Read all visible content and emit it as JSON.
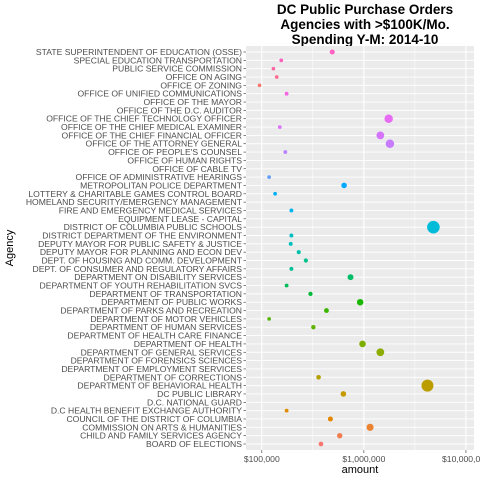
{
  "chart_data": {
    "type": "scatter",
    "title_lines": [
      "DC Public Purchase Orders",
      "Agencies with >$100K/Mo.",
      "Spending Y-M: 2014-10"
    ],
    "xlabel": "amount",
    "ylabel": "Agency",
    "x_scale": "log10",
    "xlim": [
      70000,
      12000000
    ],
    "x_ticks": [
      100000,
      1000000,
      10000000
    ],
    "x_tick_labels": [
      "$100,000",
      "$1,000,000",
      "$10,000,000"
    ],
    "grid": true,
    "legend": "none",
    "point_color_scheme": "hue by agency",
    "agencies": [
      "STATE SUPERINTENDENT OF EDUCATION (OSSE)",
      "SPECIAL EDUCATION TRANSPORTATION",
      "PUBLIC SERVICE COMMISSION",
      "OFFICE ON AGING",
      "OFFICE OF ZONING",
      "OFFICE OF UNIFIED COMMUNICATIONS",
      "OFFICE OF THE MAYOR",
      "OFFICE OF THE D.C. AUDITOR",
      "OFFICE OF THE CHIEF TECHNOLOGY OFFICER",
      "OFFICE OF THE CHIEF MEDICAL EXAMINER",
      "OFFICE OF THE CHIEF FINANCIAL OFFICER",
      "OFFICE OF THE ATTORNEY GENERAL",
      "OFFICE OF PEOPLE'S COUNSEL",
      "OFFICE OF HUMAN RIGHTS",
      "OFFICE OF CABLE TV",
      "OFFICE OF ADMINISTRATIVE HEARINGS",
      "METROPOLITAN POLICE DEPARTMENT",
      "LOTTERY & CHARITABLE GAMES CONTROL BOARD",
      "HOMELAND SECURITY/EMERGENCY MANAGEMENT",
      "FIRE AND EMERGENCY MEDICAL SERVICES",
      "EQUIPMENT LEASE - CAPITAL",
      "DISTRICT OF COLUMBIA PUBLIC SCHOOLS",
      "DISTRICT DEPARTMENT OF THE ENVIRONMENT",
      "DEPUTY MAYOR FOR PUBLIC SAFETY & JUSTICE",
      "DEPUTY MAYOR FOR PLANNING AND ECON DEV",
      "DEPT. OF HOUSING AND COMM. DEVELOPMENT",
      "DEPT. OF CONSUMER AND REGULATORY AFFAIRS",
      "DEPARTMENT ON DISABILITY SERVICES",
      "DEPARTMENT OF YOUTH REHABILITATION SVCS",
      "DEPARTMENT OF TRANSPORTATION",
      "DEPARTMENT OF PUBLIC WORKS",
      "DEPARTMENT OF PARKS AND RECREATION",
      "DEPARTMENT OF MOTOR VEHICLES",
      "DEPARTMENT OF HUMAN SERVICES",
      "DEPARTMENT OF HEALTH CARE FINANCE",
      "DEPARTMENT OF HEALTH",
      "DEPARTMENT OF GENERAL SERVICES",
      "DEPARTMENT OF FORENSICS SCIENCES",
      "DEPARTMENT OF EMPLOYMENT SERVICES",
      "DEPARTMENT OF CORRECTIONS",
      "DEPARTMENT OF BEHAVIORAL HEALTH",
      "DC PUBLIC LIBRARY",
      "D.C. NATIONAL GUARD",
      "D.C HEALTH BENEFIT EXCHANGE AUTHORITY",
      "COUNCIL OF THE DISTRICT OF COLUMBIA",
      "COMMISSION ON ARTS & HUMANITIES",
      "CHILD AND FAMILY SERVICES AGENCY",
      "BOARD OF ELECTIONS"
    ],
    "points": [
      {
        "agency": "STATE SUPERINTENDENT OF EDUCATION (OSSE)",
        "amount": 490000,
        "color": "#FF61C3"
      },
      {
        "agency": "SPECIAL EDUCATION TRANSPORTATION",
        "amount": 155000,
        "color": "#FF62BC"
      },
      {
        "agency": "PUBLIC SERVICE COMMISSION",
        "amount": 130000,
        "color": "#FF67A4"
      },
      {
        "agency": "OFFICE ON AGING",
        "amount": 140000,
        "color": "#FF6C91"
      },
      {
        "agency": "OFFICE OF ZONING",
        "amount": 95000,
        "color": "#F8766D"
      },
      {
        "agency": "OFFICE OF UNIFIED COMMUNICATIONS",
        "amount": 175000,
        "color": "#F564E3"
      },
      {
        "agency": "OFFICE OF THE CHIEF TECHNOLOGY OFFICER",
        "amount": 1750000,
        "color": "#E76BF3"
      },
      {
        "agency": "OFFICE OF THE CHIEF MEDICAL EXAMINER",
        "amount": 150000,
        "color": "#DB72FB"
      },
      {
        "agency": "OFFICE OF THE CHIEF FINANCIAL OFFICER",
        "amount": 1450000,
        "color": "#D575FE"
      },
      {
        "agency": "OFFICE OF THE ATTORNEY GENERAL",
        "amount": 1800000,
        "color": "#C77CFF"
      },
      {
        "agency": "OFFICE OF PEOPLE'S COUNSEL",
        "amount": 170000,
        "color": "#B983FF"
      },
      {
        "agency": "OFFICE OF ADMINISTRATIVE HEARINGS",
        "amount": 118000,
        "color": "#619CFF"
      },
      {
        "agency": "METROPOLITAN POLICE DEPARTMENT",
        "amount": 640000,
        "color": "#00A9FF"
      },
      {
        "agency": "LOTTERY & CHARITABLE GAMES CONTROL BOARD",
        "amount": 135000,
        "color": "#00B0F6"
      },
      {
        "agency": "FIRE AND EMERGENCY MEDICAL SERVICES",
        "amount": 195000,
        "color": "#00B4EF"
      },
      {
        "agency": "DISTRICT OF COLUMBIA PUBLIC SCHOOLS",
        "amount": 4800000,
        "color": "#00BCD8"
      },
      {
        "agency": "DISTRICT DEPARTMENT OF THE ENVIRONMENT",
        "amount": 195000,
        "color": "#00BFC4"
      },
      {
        "agency": "DEPUTY MAYOR FOR PUBLIC SAFETY & JUSTICE",
        "amount": 192000,
        "color": "#00BFC0"
      },
      {
        "agency": "DEPUTY MAYOR FOR PLANNING AND ECON DEV",
        "amount": 230000,
        "color": "#00C1A9"
      },
      {
        "agency": "DEPT. OF HOUSING AND COMM. DEVELOPMENT",
        "amount": 270000,
        "color": "#00C08B"
      },
      {
        "agency": "DEPT. OF CONSUMER AND REGULATORY AFFAIRS",
        "amount": 195000,
        "color": "#00C094"
      },
      {
        "agency": "DEPARTMENT ON DISABILITY SERVICES",
        "amount": 740000,
        "color": "#00BE67"
      },
      {
        "agency": "DEPARTMENT OF YOUTH REHABILITATION SVCS",
        "amount": 175000,
        "color": "#00BC59"
      },
      {
        "agency": "DEPARTMENT OF TRANSPORTATION",
        "amount": 300000,
        "color": "#00BA38"
      },
      {
        "agency": "DEPARTMENT OF PUBLIC WORKS",
        "amount": 920000,
        "color": "#19B700"
      },
      {
        "agency": "DEPARTMENT OF PARKS AND RECREATION",
        "amount": 430000,
        "color": "#39B600"
      },
      {
        "agency": "DEPARTMENT OF MOTOR VEHICLES",
        "amount": 118000,
        "color": "#53B400"
      },
      {
        "agency": "DEPARTMENT OF HUMAN SERVICES",
        "amount": 320000,
        "color": "#5EB300"
      },
      {
        "agency": "DEPARTMENT OF HEALTH",
        "amount": 970000,
        "color": "#7CAE00"
      },
      {
        "agency": "DEPARTMENT OF GENERAL SERVICES",
        "amount": 1450000,
        "color": "#8EAB00"
      },
      {
        "agency": "DEPARTMENT OF CORRECTIONS",
        "amount": 360000,
        "color": "#B79F00"
      },
      {
        "agency": "DEPARTMENT OF BEHAVIORAL HEALTH",
        "amount": 4200000,
        "color": "#BB9D00"
      },
      {
        "agency": "DC PUBLIC LIBRARY",
        "amount": 630000,
        "color": "#C49A00"
      },
      {
        "agency": "D.C HEALTH BENEFIT EXCHANGE AUTHORITY",
        "amount": 175000,
        "color": "#DE8C00"
      },
      {
        "agency": "COUNCIL OF THE DISTRICT OF COLUMBIA",
        "amount": 470000,
        "color": "#E58700"
      },
      {
        "agency": "COMMISSION ON ARTS & HUMANITIES",
        "amount": 1150000,
        "color": "#EA8331"
      },
      {
        "agency": "CHILD AND FAMILY SERVICES AGENCY",
        "amount": 580000,
        "color": "#F17E4E"
      },
      {
        "agency": "BOARD OF ELECTIONS",
        "amount": 380000,
        "color": "#F8766D"
      }
    ]
  }
}
